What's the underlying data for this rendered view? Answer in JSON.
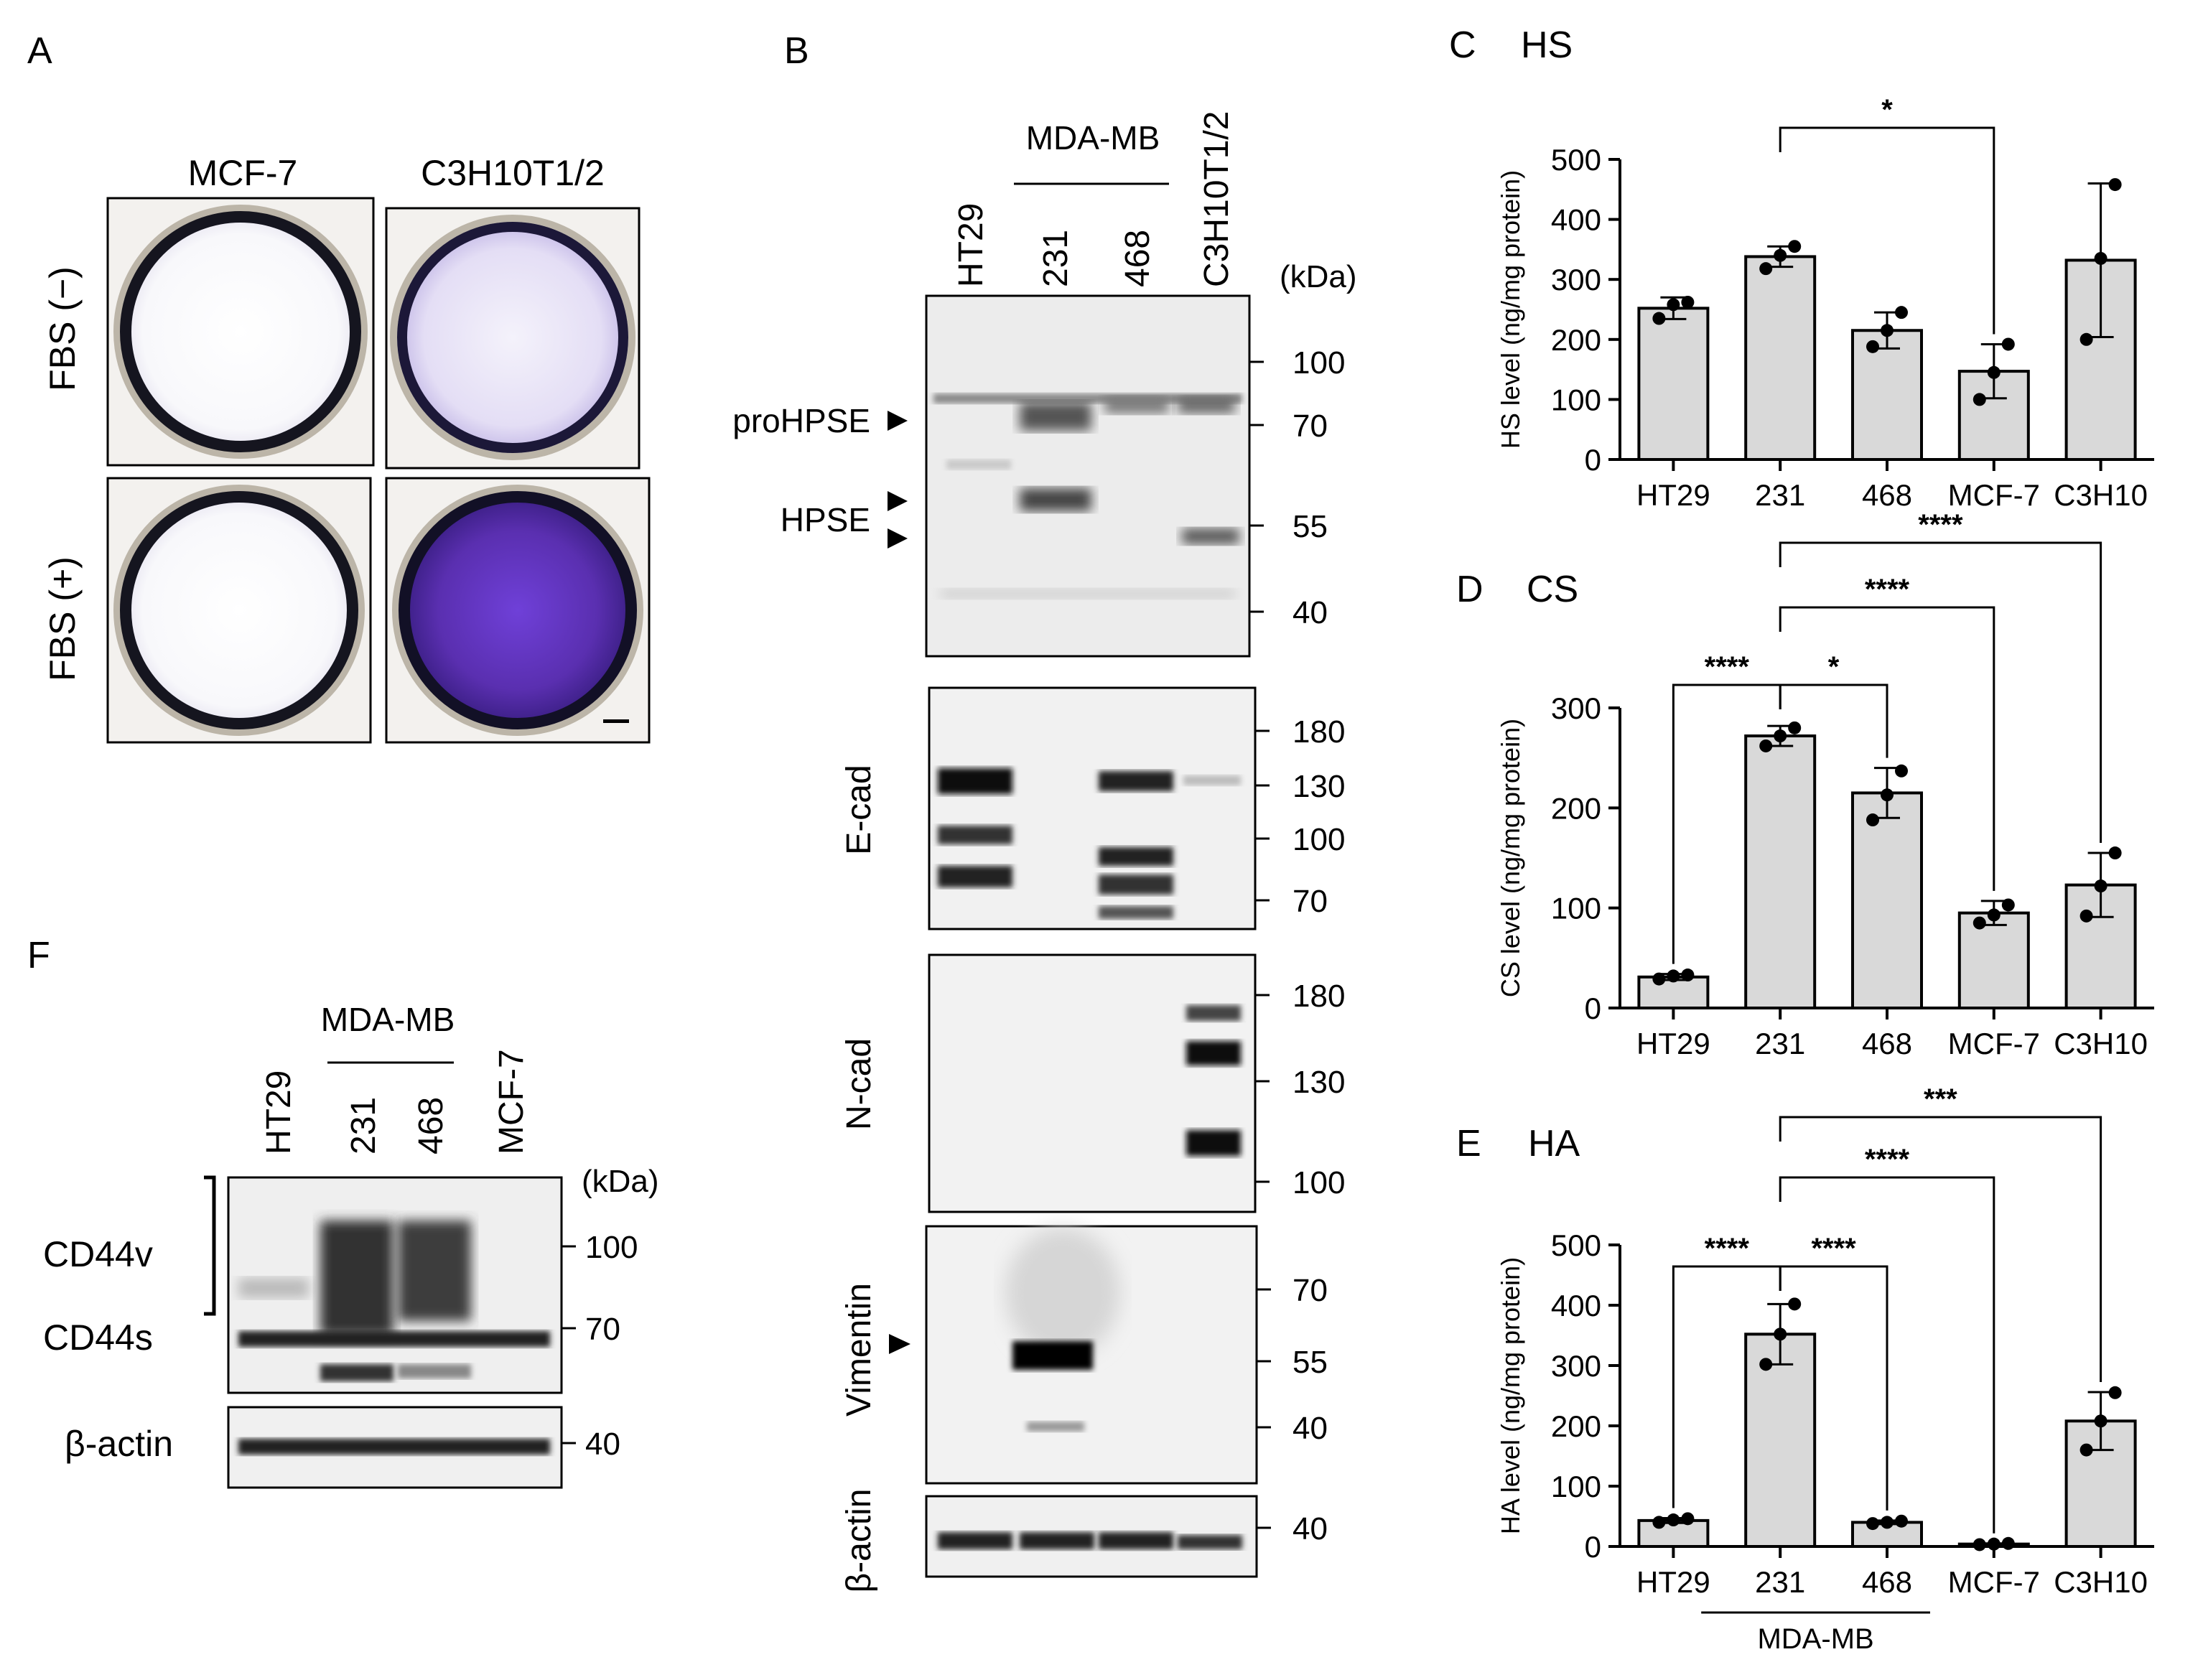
{
  "panel_labels": {
    "a": "A",
    "b": "B",
    "c": "C",
    "d": "D",
    "e": "E",
    "f": "F"
  },
  "panel_a": {
    "columns": [
      "MCF-7",
      "C3H10T1/2"
    ],
    "rows": [
      "FBS (−)",
      "FBS (+)"
    ],
    "stain_color": "#5a2fb0"
  },
  "panel_b": {
    "group_label": "MDA-MB",
    "lanes": [
      "HT29",
      "231",
      "468",
      "C3H10T1/2"
    ],
    "kda_header": "(kDa)",
    "blots": [
      {
        "label": "",
        "markers": [
          "100",
          "70",
          "55",
          "40"
        ],
        "arrows": [
          "proHPSE",
          "HPSE"
        ]
      },
      {
        "label": "E-cad",
        "markers": [
          "180",
          "130",
          "100",
          "70"
        ]
      },
      {
        "label": "N-cad",
        "markers": [
          "180",
          "130",
          "100"
        ]
      },
      {
        "label": "Vimentin",
        "markers": [
          "70",
          "55",
          "40"
        ]
      },
      {
        "label": "β-actin",
        "markers": [
          "40"
        ]
      }
    ]
  },
  "panel_f": {
    "group_label": "MDA-MB",
    "lanes": [
      "HT29",
      "231",
      "468",
      "MCF-7"
    ],
    "kda_header": "(kDa)",
    "bands": [
      "CD44v",
      "CD44s",
      "β-actin"
    ],
    "markers": [
      "100",
      "70",
      "40"
    ]
  },
  "chart_data": [
    {
      "type": "bar",
      "title": "HS",
      "ylabel": "HS level (ng/mg protein)",
      "categories": [
        "HT29",
        "231",
        "468",
        "MCF-7",
        "C3H10"
      ],
      "values": [
        252,
        338,
        215,
        147,
        332
      ],
      "error": [
        18,
        17,
        30,
        45,
        128
      ],
      "points": [
        [
          235,
          258,
          262
        ],
        [
          318,
          340,
          355
        ],
        [
          188,
          215,
          245
        ],
        [
          100,
          145,
          192
        ],
        [
          200,
          335,
          458
        ]
      ],
      "ylim": [
        0,
        500
      ],
      "yticks": [
        0,
        100,
        200,
        300,
        400,
        500
      ],
      "significance": [
        {
          "from": 1,
          "to": 3,
          "label": "*"
        }
      ]
    },
    {
      "type": "bar",
      "title": "CS",
      "ylabel": "CS level (ng/mg protein)",
      "categories": [
        "HT29",
        "231",
        "468",
        "MCF-7",
        "C3H10"
      ],
      "values": [
        31,
        272,
        215,
        95,
        123
      ],
      "error": [
        3,
        10,
        25,
        12,
        32
      ],
      "points": [
        [
          29,
          32,
          33
        ],
        [
          262,
          272,
          280
        ],
        [
          188,
          213,
          237
        ],
        [
          85,
          93,
          103
        ],
        [
          92,
          122,
          155
        ]
      ],
      "ylim": [
        0,
        300
      ],
      "yticks": [
        0,
        100,
        200,
        300
      ],
      "significance": [
        {
          "from": 1,
          "to": 0,
          "label": "****"
        },
        {
          "from": 1,
          "to": 2,
          "label": "*"
        },
        {
          "from": 1,
          "to": 3,
          "label": "****"
        },
        {
          "from": 1,
          "to": 4,
          "label": "****"
        }
      ]
    },
    {
      "type": "bar",
      "title": "HA",
      "ylabel": "HA level (ng/mg protein)",
      "categories": [
        "HT29",
        "231",
        "468",
        "MCF-7",
        "C3H10"
      ],
      "group_label": "MDA-MB",
      "values": [
        43,
        352,
        40,
        4,
        208
      ],
      "error": [
        4,
        50,
        3,
        1,
        48
      ],
      "points": [
        [
          40,
          44,
          46
        ],
        [
          302,
          352,
          402
        ],
        [
          38,
          40,
          42
        ],
        [
          3,
          4,
          5
        ],
        [
          160,
          208,
          255
        ]
      ],
      "ylim": [
        0,
        500
      ],
      "yticks": [
        0,
        100,
        200,
        300,
        400,
        500
      ],
      "significance": [
        {
          "from": 1,
          "to": 0,
          "label": "****"
        },
        {
          "from": 1,
          "to": 2,
          "label": "****"
        },
        {
          "from": 1,
          "to": 3,
          "label": "****"
        },
        {
          "from": 1,
          "to": 4,
          "label": "***"
        }
      ]
    }
  ]
}
